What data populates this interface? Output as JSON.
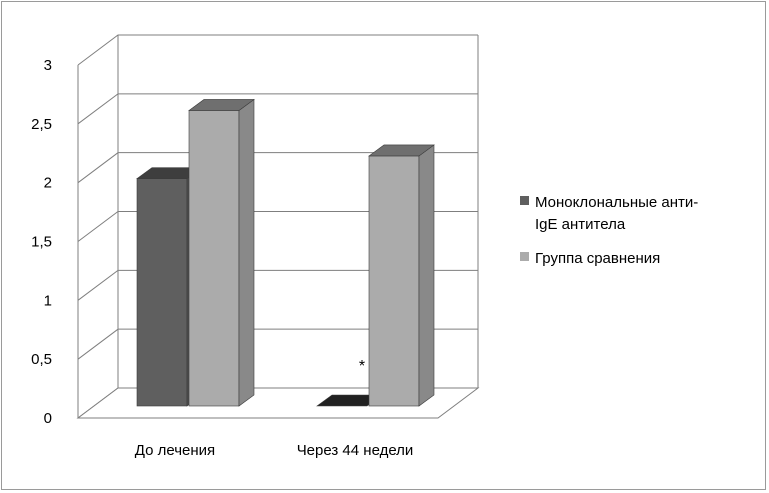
{
  "chart_data": {
    "type": "bar",
    "categories": [
      "До лечения",
      "Через 44 недели"
    ],
    "series": [
      {
        "name": "Моноклональные анти-IgE антитела",
        "values": [
          2.0,
          0.0
        ],
        "color": "#5f5f5f"
      },
      {
        "name": "Группа сравнения",
        "values": [
          2.6,
          2.2
        ],
        "color": "#ababab"
      }
    ],
    "yticks": [
      "0",
      "0,5",
      "1",
      "1,5",
      "2",
      "2,5",
      "3"
    ],
    "ylim": [
      0,
      3
    ],
    "grid": true,
    "legend_position": "right",
    "annotation": "*"
  },
  "legend": {
    "items": [
      {
        "label_line1": "Моноклональные анти-",
        "label_line2": "IgE антитела",
        "color": "#5f5f5f"
      },
      {
        "label_line1": "Группа сравнения",
        "label_line2": "",
        "color": "#ababab"
      }
    ]
  }
}
